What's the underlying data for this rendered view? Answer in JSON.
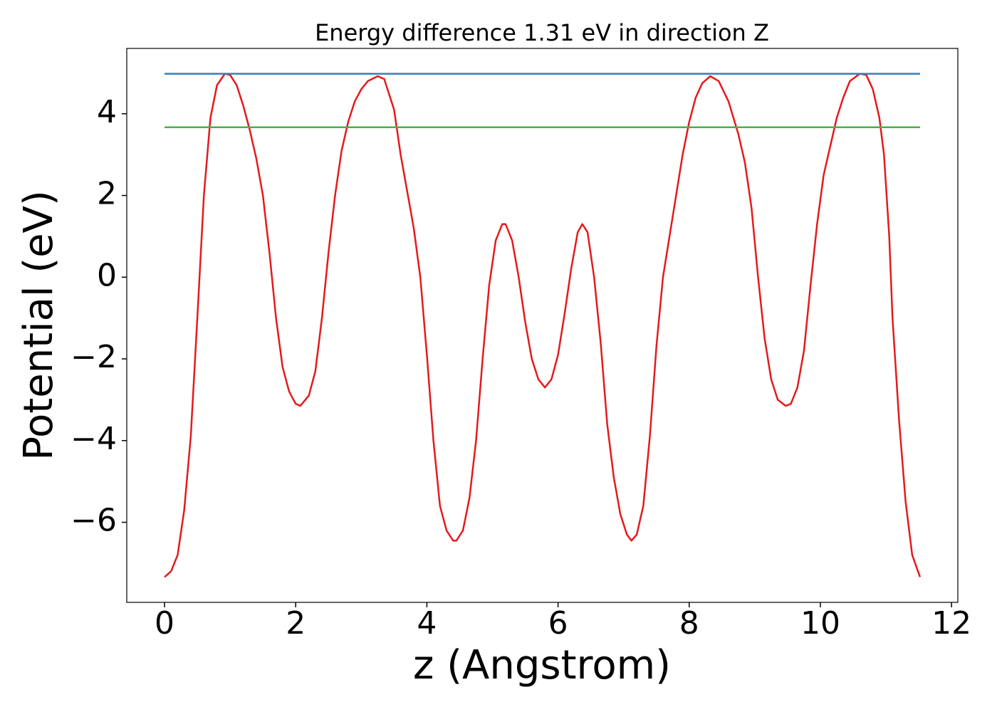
{
  "chart_data": {
    "type": "line",
    "title": "Energy difference 1.31 eV in direction Z",
    "xlabel": "z (Angstrom)",
    "ylabel": "Potential (eV)",
    "xlim": [
      -0.576,
      12.096
    ],
    "ylim": [
      -7.96,
      5.6
    ],
    "xticks": [
      0,
      2,
      4,
      6,
      8,
      10,
      12
    ],
    "yticks": [
      {
        "value": -6,
        "label": "−6"
      },
      {
        "value": -4,
        "label": "−4"
      },
      {
        "value": -2,
        "label": "−2"
      },
      0,
      2,
      4
    ],
    "grid": false,
    "series": [
      {
        "color": "#e41a1c",
        "x": [
          0,
          0.1,
          0.2,
          0.3,
          0.4,
          0.5,
          0.6,
          0.7,
          0.8,
          0.92,
          1.0,
          1.1,
          1.2,
          1.3,
          1.4,
          1.5,
          1.6,
          1.7,
          1.8,
          1.9,
          2.0,
          2.07,
          2.2,
          2.3,
          2.4,
          2.5,
          2.6,
          2.7,
          2.8,
          2.9,
          3.0,
          3.1,
          3.25,
          3.35,
          3.5,
          3.6,
          3.7,
          3.8,
          3.9,
          4.0,
          4.1,
          4.2,
          4.3,
          4.4,
          4.45,
          4.55,
          4.65,
          4.75,
          4.85,
          4.95,
          5.05,
          5.15,
          5.2,
          5.3,
          5.4,
          5.5,
          5.6,
          5.7,
          5.8,
          5.9,
          6.0,
          6.1,
          6.2,
          6.3,
          6.37,
          6.45,
          6.55,
          6.65,
          6.75,
          6.85,
          6.95,
          7.05,
          7.12,
          7.2,
          7.3,
          7.4,
          7.5,
          7.6,
          7.7,
          7.8,
          7.9,
          8.0,
          8.1,
          8.2,
          8.32,
          8.45,
          8.6,
          8.75,
          8.85,
          8.95,
          9.05,
          9.15,
          9.25,
          9.35,
          9.47,
          9.55,
          9.65,
          9.75,
          9.85,
          9.95,
          10.05,
          10.15,
          10.25,
          10.35,
          10.45,
          10.6,
          10.7,
          10.8,
          10.9,
          10.97,
          11.05,
          11.1,
          11.2,
          11.3,
          11.4,
          11.52
        ],
        "values": [
          -7.34,
          -7.2,
          -6.8,
          -5.7,
          -3.9,
          -1.0,
          2.0,
          3.9,
          4.7,
          4.98,
          4.95,
          4.7,
          4.2,
          3.6,
          2.9,
          2.0,
          0.6,
          -1.0,
          -2.2,
          -2.8,
          -3.1,
          -3.15,
          -2.9,
          -2.3,
          -1.0,
          0.6,
          2.0,
          3.1,
          3.8,
          4.3,
          4.6,
          4.8,
          4.92,
          4.85,
          4.1,
          3.0,
          2.1,
          1.2,
          0.0,
          -1.9,
          -4.0,
          -5.6,
          -6.2,
          -6.45,
          -6.45,
          -6.2,
          -5.4,
          -4.0,
          -2.0,
          -0.2,
          0.9,
          1.3,
          1.3,
          0.9,
          0.0,
          -1.1,
          -2.0,
          -2.5,
          -2.7,
          -2.5,
          -1.9,
          -0.9,
          0.2,
          1.1,
          1.3,
          1.1,
          0.0,
          -1.6,
          -3.6,
          -4.9,
          -5.8,
          -6.3,
          -6.45,
          -6.3,
          -5.6,
          -3.9,
          -1.7,
          0.0,
          1.0,
          2.0,
          3.0,
          3.8,
          4.4,
          4.75,
          4.92,
          4.8,
          4.3,
          3.5,
          2.8,
          1.7,
          0.0,
          -1.5,
          -2.5,
          -3.0,
          -3.15,
          -3.1,
          -2.7,
          -1.8,
          -0.2,
          1.3,
          2.5,
          3.2,
          3.9,
          4.4,
          4.8,
          4.98,
          4.95,
          4.6,
          3.9,
          3.0,
          1.0,
          -1.0,
          -3.5,
          -5.5,
          -6.8,
          -7.34
        ]
      },
      {
        "color": "#377eb8",
        "x": [
          0,
          11.52
        ],
        "values": [
          4.98,
          4.98
        ]
      },
      {
        "color": "#4daf4a",
        "x": [
          0,
          11.52
        ],
        "values": [
          3.67,
          3.67
        ]
      }
    ]
  }
}
